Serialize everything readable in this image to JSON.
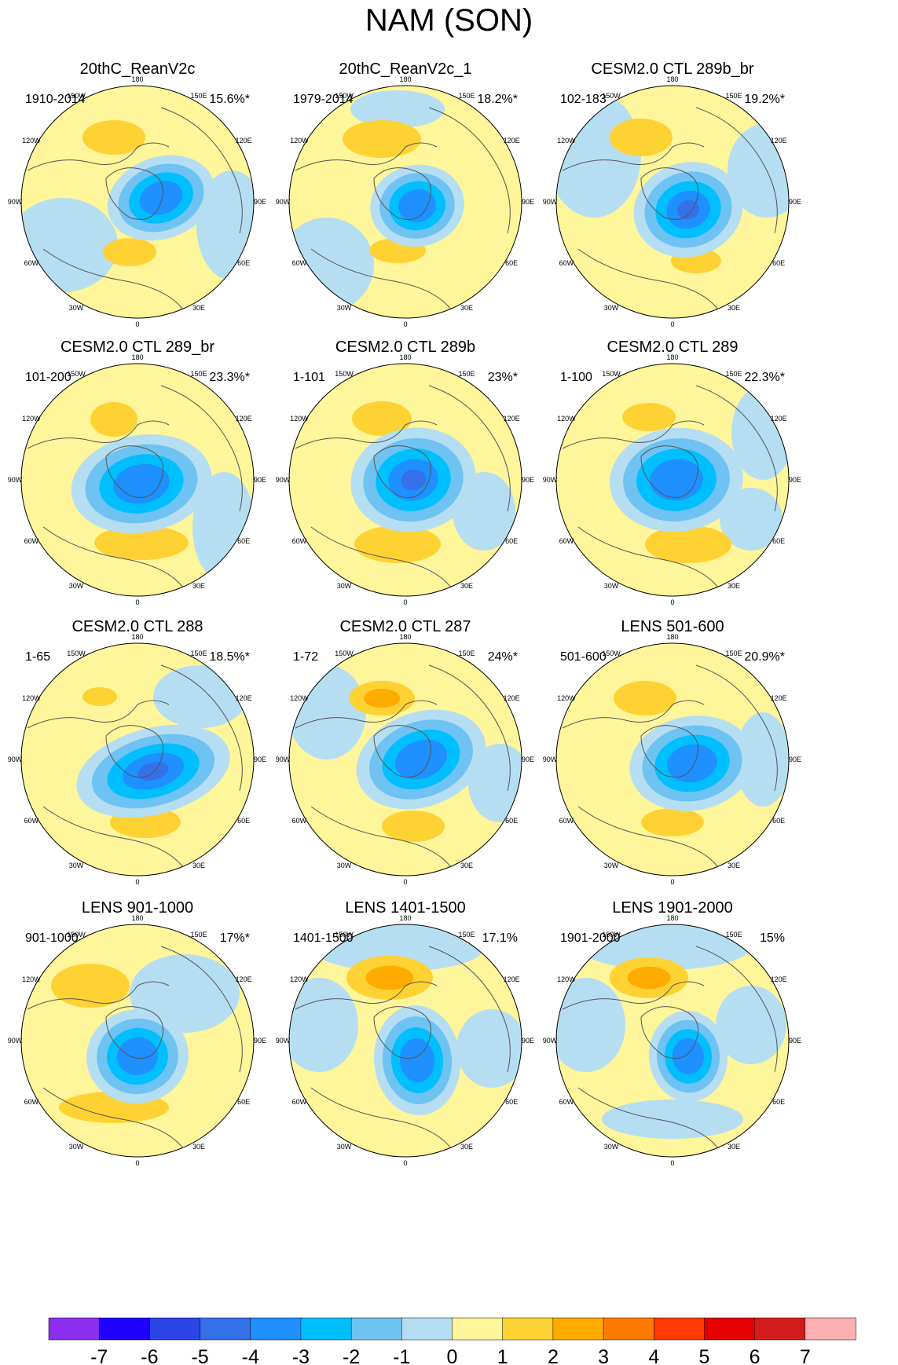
{
  "title": "NAM (SON)",
  "chart_data": {
    "type": "heatmap",
    "title": "NAM (SON)",
    "projection": "north polar stereographic",
    "longitude_labels": [
      "180",
      "150E",
      "120E",
      "90E",
      "60E",
      "30E",
      "0",
      "30W",
      "60W",
      "90W",
      "120W",
      "150W"
    ],
    "panels": [
      {
        "title": "20thC_ReanV2c",
        "years": "1910-2014",
        "variance": "15.6%*",
        "min_value": -3.5,
        "max_value": 1.6
      },
      {
        "title": "20thC_ReanV2c_1",
        "years": "1979-2014",
        "variance": "18.2%*",
        "min_value": -3.4,
        "max_value": 1.7
      },
      {
        "title": "CESM2.0 CTL 289b_br",
        "years": "102-183",
        "variance": "19.2%*",
        "min_value": -4.3,
        "max_value": 1.6
      },
      {
        "title": "CESM2.0 CTL 289_br",
        "years": "101-200",
        "variance": "23.3%*",
        "min_value": -3.9,
        "max_value": 1.8
      },
      {
        "title": "CESM2.0 CTL 289b",
        "years": "1-101",
        "variance": "23%*",
        "min_value": -4.4,
        "max_value": 1.8
      },
      {
        "title": "CESM2.0 CTL 289",
        "years": "1-100",
        "variance": "22.3%*",
        "min_value": -3.8,
        "max_value": 1.9
      },
      {
        "title": "CESM2.0 CTL 288",
        "years": "1-65",
        "variance": "18.5%*",
        "min_value": -4.2,
        "max_value": 1.6
      },
      {
        "title": "CESM2.0 CTL 287",
        "years": "1-72",
        "variance": "24%*",
        "min_value": -3.8,
        "max_value": 2.3
      },
      {
        "title": "LENS 501-600",
        "years": "501-600",
        "variance": "20.9%*",
        "min_value": -3.9,
        "max_value": 1.6
      },
      {
        "title": "LENS 901-1000",
        "years": "901-1000",
        "variance": "17%*",
        "min_value": -3.4,
        "max_value": 1.8
      },
      {
        "title": "LENS 1401-1500",
        "years": "1401-1500",
        "variance": "17.1%",
        "min_value": -3.6,
        "max_value": 2.8
      },
      {
        "title": "LENS 1901-2000",
        "years": "1901-2000",
        "variance": "15%",
        "min_value": -3.2,
        "max_value": 2.8
      }
    ],
    "colorbar": {
      "levels": [
        -7,
        -6,
        -5,
        -4,
        -3,
        -2,
        -1,
        0,
        1,
        2,
        3,
        4,
        5,
        6,
        7
      ],
      "labels": [
        "-7",
        "-6",
        "-5",
        "-4",
        "-3",
        "-2",
        "-1",
        "0",
        "1",
        "2",
        "3",
        "4",
        "5",
        "6",
        "7"
      ],
      "colors": [
        "#8c2ef0",
        "#1f00ff",
        "#2a44e6",
        "#3470e8",
        "#1e90ff",
        "#00bfff",
        "#6ec3f2",
        "#b5def3",
        "#fff59a",
        "#ffd233",
        "#ffab00",
        "#ff7b00",
        "#ff3b00",
        "#e40000",
        "#d21c1c",
        "#ffb0b0"
      ]
    }
  }
}
